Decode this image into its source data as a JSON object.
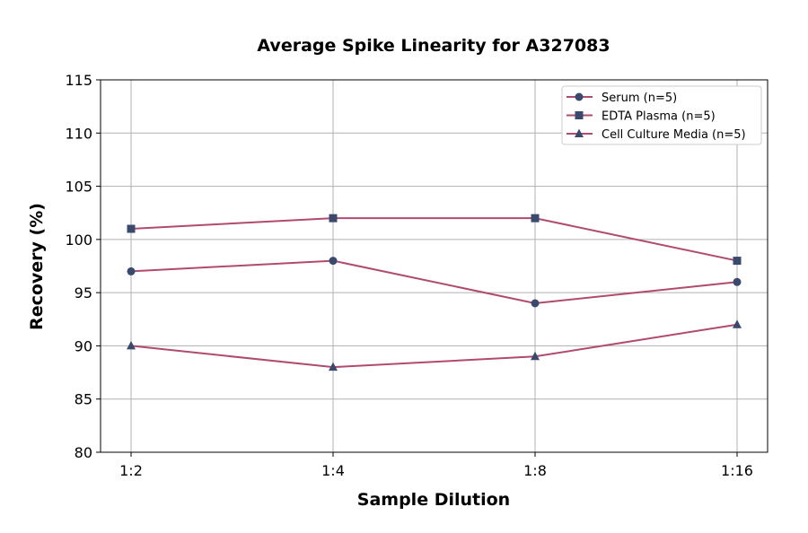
{
  "chart_data": {
    "type": "line",
    "title": "Average Spike Linearity for A327083",
    "xlabel": "Sample Dilution",
    "ylabel": "Recovery (%)",
    "categories": [
      "1:2",
      "1:4",
      "1:8",
      "1:16"
    ],
    "ylim": [
      80,
      115
    ],
    "yticks": [
      80,
      85,
      90,
      95,
      100,
      105,
      110,
      115
    ],
    "grid": true,
    "legend_position": "top-right",
    "line_color": "#b04a6e",
    "marker_color": "#3a4a6e",
    "series": [
      {
        "name": "Serum (n=5)",
        "marker": "circle",
        "values": [
          97,
          98,
          94,
          96
        ]
      },
      {
        "name": "EDTA Plasma (n=5)",
        "marker": "square",
        "values": [
          101,
          102,
          102,
          98
        ]
      },
      {
        "name": "Cell Culture Media (n=5)",
        "marker": "triangle",
        "values": [
          90,
          88,
          89,
          92
        ]
      }
    ]
  }
}
